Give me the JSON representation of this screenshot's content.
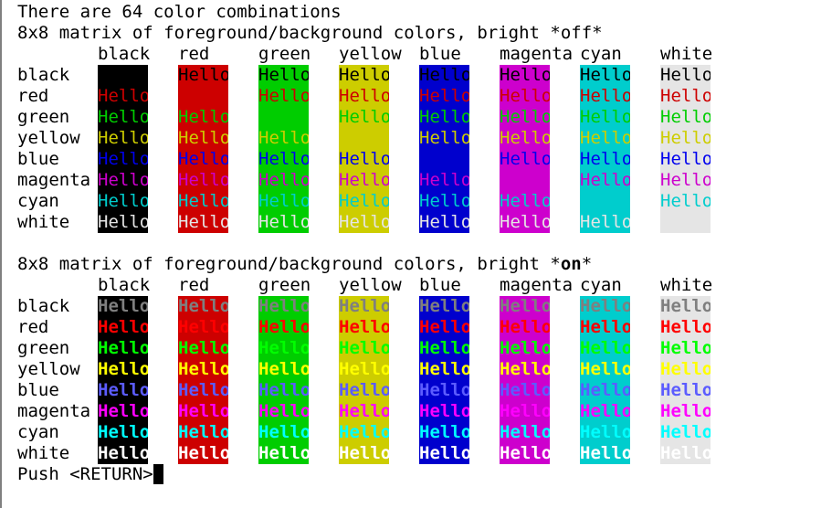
{
  "terminal": {
    "intro": "There are 64 color combinations",
    "off_title": "8x8 matrix of foreground/background colors, bright *off*",
    "on_title_prefix": "8x8 matrix of foreground/background colors, bright *",
    "on_title_bold": "on",
    "on_title_suffix": "*",
    "prompt": "Push <RETURN>",
    "cell_text": "Hello"
  },
  "colors": [
    "black",
    "red",
    "green",
    "yellow",
    "blue",
    "magenta",
    "cyan",
    "white"
  ],
  "palette": {
    "bg": [
      "#000000",
      "#cd0000",
      "#00cd00",
      "#cdcd00",
      "#0000cd",
      "#cd00cd",
      "#00cdcd",
      "#e5e5e5"
    ],
    "fg_normal": [
      "#000000",
      "#cd0000",
      "#00cd00",
      "#cdcd00",
      "#0000ee",
      "#cd00cd",
      "#00cdcd",
      "#e5e5e5"
    ],
    "fg_bright": [
      "#7f7f7f",
      "#ff0000",
      "#00ff00",
      "#ffff00",
      "#5c5cff",
      "#ff00ff",
      "#00ffff",
      "#ffffff"
    ],
    "terminal_bg": "#ffffff",
    "terminal_fg": "#000000"
  }
}
